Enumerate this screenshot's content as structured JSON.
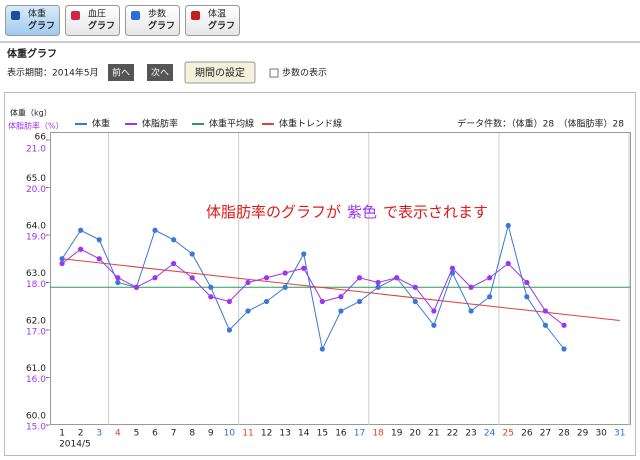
{
  "toolbar": {
    "tabs": [
      {
        "line1": "体重",
        "line2": "グラフ"
      },
      {
        "line1": "血圧",
        "line2": "グラフ"
      },
      {
        "line1": "歩数",
        "line2": "グラフ"
      },
      {
        "line1": "体温",
        "line2": "グラフ"
      }
    ]
  },
  "page_title": "体重グラフ",
  "period": "表示期間：2014年5月",
  "buttons": {
    "prev": "前へ",
    "next": "次へ",
    "set_period": "期間の設定"
  },
  "checkbox_label": "歩数の表示",
  "chart_data": {
    "type": "line",
    "y_label": "体重（kg）",
    "y2_label": "体脂肪率（%）",
    "record_count": "データ件数：（体重）28　（体脂肪率）28",
    "annotation": {
      "before": "体脂肪率のグラフが",
      "highlight": "紫色",
      "after": "で表示されます"
    },
    "x_sublabel": "2014/5",
    "x": [
      1,
      2,
      3,
      4,
      5,
      6,
      7,
      8,
      9,
      10,
      11,
      12,
      13,
      14,
      15,
      16,
      17,
      18,
      19,
      20,
      21,
      22,
      23,
      24,
      25,
      26,
      27,
      28
    ],
    "xlim": [
      0.35,
      31.55
    ],
    "xticks": [
      1,
      2,
      3,
      4,
      5,
      6,
      7,
      8,
      9,
      10,
      11,
      12,
      13,
      14,
      15,
      16,
      17,
      18,
      19,
      20,
      21,
      22,
      23,
      24,
      25,
      26,
      27,
      28,
      29,
      30,
      31
    ],
    "saturdays": [
      3,
      10,
      17,
      24,
      31
    ],
    "sundays": [
      4,
      11,
      18,
      25
    ],
    "saturday_color": "#2a6fd6",
    "sunday_color": "#e0401e",
    "ylim": [
      60,
      66
    ],
    "yticks": [
      {
        "value": 60,
        "label": "60.0"
      },
      {
        "value": 61,
        "label": "61.0"
      },
      {
        "value": 62,
        "label": "62.0"
      },
      {
        "value": 63,
        "label": "63.0"
      },
      {
        "value": 64,
        "label": "64.0"
      },
      {
        "value": 65,
        "label": "65.0"
      },
      66
    ],
    "y2lim": [
      15,
      21
    ],
    "y2ticks": [
      {
        "value": 15,
        "label": "15.0"
      },
      {
        "value": 16,
        "label": "16.0"
      },
      {
        "value": 17,
        "label": "17.0"
      },
      {
        "value": 18,
        "label": "18.0"
      },
      {
        "value": 19,
        "label": "19.0"
      },
      {
        "value": 20,
        "label": "20.0"
      },
      {
        "value": 21,
        "label": "21.0"
      }
    ],
    "series": [
      {
        "name": "体重",
        "color": "#3a78d8",
        "values": [
          63.5,
          64.1,
          63.9,
          63.0,
          62.9,
          64.1,
          63.9,
          63.6,
          62.9,
          62.0,
          62.4,
          62.6,
          62.9,
          63.6,
          61.6,
          62.4,
          62.6,
          62.9,
          63.1,
          62.6,
          62.1,
          63.2,
          62.4,
          62.7,
          64.2,
          62.7,
          62.1,
          61.6
        ]
      },
      {
        "name": "体脂肪率",
        "color": "#9b35f0",
        "axis": "y2",
        "values": [
          18.4,
          18.7,
          18.5,
          18.1,
          17.9,
          18.1,
          18.4,
          18.1,
          17.7,
          17.6,
          18.0,
          18.1,
          18.2,
          18.3,
          17.6,
          17.7,
          18.1,
          18.0,
          18.1,
          17.9,
          17.4,
          18.3,
          17.9,
          18.1,
          18.4,
          18.0,
          17.4,
          17.1
        ]
      }
    ],
    "reference_lines": [
      {
        "name": "体重平均線",
        "color": "#2e9a58",
        "value": 62.9
      },
      {
        "name": "体重トレンド線",
        "color": "#e04040",
        "x": [
          1,
          31
        ],
        "values": [
          63.5,
          62.2
        ]
      }
    ]
  }
}
